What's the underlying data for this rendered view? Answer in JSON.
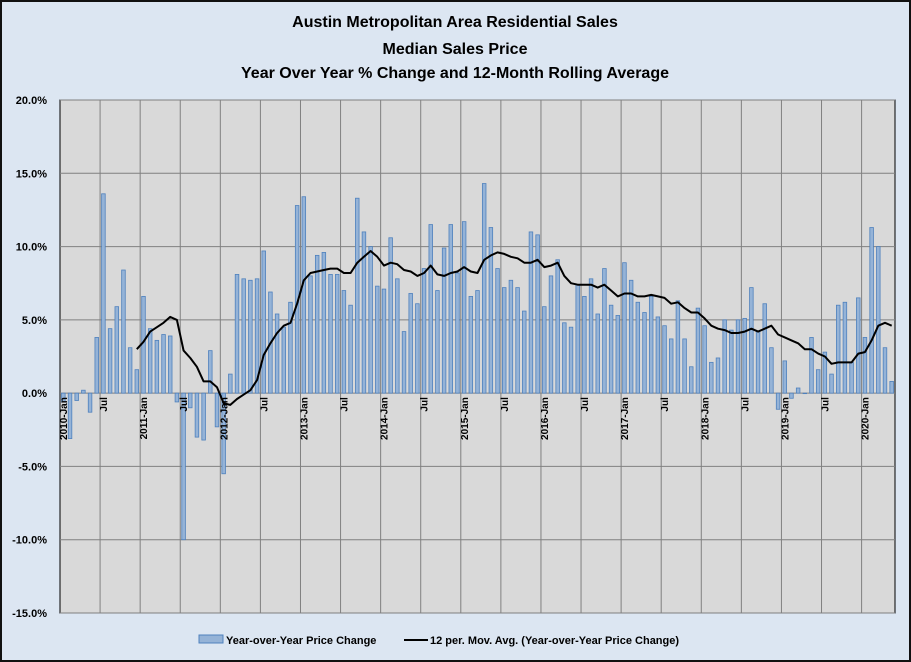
{
  "chart_data": {
    "type": "bar+line",
    "title": [
      "Austin Metropolitan Area Residential Sales",
      "Median Sales Price",
      "Year Over Year % Change and   12-Month Rolling Average"
    ],
    "ylim": [
      -15,
      20
    ],
    "yticks": [
      "-15.0%",
      "-10.0%",
      "-5.0%",
      "0.0%",
      "5.0%",
      "10.0%",
      "15.0%",
      "20.0%"
    ],
    "ytick_values": [
      -15,
      -10,
      -5,
      0,
      5,
      10,
      15,
      20
    ],
    "xtick_labels": [
      "2010-Jan",
      "Jul",
      "2011-Jan",
      "Jul",
      "2012-Jan",
      "Jul",
      "2013-Jan",
      "Jul",
      "2014-Jan",
      "Jul",
      "2015-Jan",
      "Jul",
      "2016-Jan",
      "Jul",
      "2017-Jan",
      "Jul",
      "2018-Jan",
      "Jul",
      "2019-Jan",
      "Jul",
      "2020-Jan"
    ],
    "x_start": "2010-Jan",
    "x_end": "2020-May",
    "grid": true,
    "legend_position": "bottom",
    "colors": {
      "bar": "#95b3d7",
      "bar_edge": "#4f81bd",
      "line": "#000000",
      "plot_bg": "#d9d9d9",
      "chart_bg": "#dce6f2",
      "grid": "#808080"
    },
    "series": [
      {
        "name": "Year-over-Year Price Change",
        "type": "bar",
        "values": [
          -0.6,
          -3.1,
          -0.5,
          0.2,
          -1.3,
          3.8,
          13.6,
          4.4,
          5.9,
          8.4,
          3.1,
          1.6,
          6.6,
          4.4,
          3.6,
          4.0,
          3.9,
          -0.6,
          -10.0,
          -1.0,
          -3.0,
          -3.2,
          2.9,
          -2.3,
          -5.5,
          1.3,
          8.1,
          7.8,
          7.7,
          7.8,
          9.7,
          6.9,
          5.4,
          4.5,
          6.2,
          12.8,
          13.4,
          8.0,
          9.4,
          9.6,
          8.1,
          8.1,
          7.0,
          6.0,
          13.3,
          11.0,
          10.0,
          7.3,
          7.1,
          10.6,
          7.8,
          4.2,
          6.8,
          6.1,
          8.5,
          11.5,
          7.0,
          9.9,
          11.5,
          8.2,
          11.7,
          6.6,
          7.0,
          14.3,
          11.3,
          8.5,
          7.2,
          7.7,
          7.2,
          5.6,
          11.0,
          10.8,
          5.9,
          8.0,
          9.1,
          4.8,
          4.5,
          7.4,
          6.6,
          7.8,
          5.4,
          8.5,
          6.0,
          5.3,
          8.9,
          7.7,
          6.2,
          5.5,
          6.6,
          5.2,
          4.6,
          3.7,
          6.3,
          3.7,
          1.8,
          5.8,
          4.6,
          2.1,
          2.4,
          5.0,
          4.3,
          5.0,
          5.1,
          7.2,
          4.2,
          6.1,
          3.1,
          -1.1,
          2.2,
          -0.35,
          0.35,
          0.0,
          3.8,
          1.6,
          2.8,
          1.3,
          6.0,
          6.2,
          2.1,
          6.5,
          3.8,
          11.3,
          10.0,
          3.1,
          0.8
        ]
      },
      {
        "name": "12 per. Mov. Avg. (Year-over-Year Price Change)",
        "type": "line",
        "values": [
          null,
          null,
          null,
          null,
          null,
          null,
          null,
          null,
          null,
          null,
          null,
          3.0,
          3.5,
          4.2,
          4.5,
          4.8,
          5.2,
          5.0,
          2.9,
          2.4,
          1.8,
          0.8,
          0.8,
          0.4,
          -0.7,
          -0.8,
          -0.4,
          -0.1,
          0.2,
          0.9,
          2.6,
          3.4,
          4.1,
          4.6,
          4.8,
          6.1,
          7.7,
          8.2,
          8.3,
          8.4,
          8.5,
          8.5,
          8.2,
          8.2,
          8.9,
          9.3,
          9.7,
          9.3,
          8.7,
          8.9,
          8.8,
          8.4,
          8.3,
          8.0,
          8.2,
          8.7,
          8.1,
          8.0,
          8.2,
          8.3,
          8.6,
          8.3,
          8.2,
          9.1,
          9.4,
          9.6,
          9.5,
          9.3,
          9.2,
          8.9,
          8.9,
          9.1,
          8.6,
          8.7,
          8.9,
          8.0,
          7.5,
          7.4,
          7.4,
          7.4,
          7.2,
          7.4,
          7.0,
          6.6,
          6.8,
          6.8,
          6.6,
          6.6,
          6.7,
          6.6,
          6.5,
          6.1,
          6.2,
          5.8,
          5.5,
          5.5,
          5.1,
          4.6,
          4.4,
          4.3,
          4.1,
          4.1,
          4.2,
          4.4,
          4.2,
          4.4,
          4.6,
          4.0,
          3.8,
          3.6,
          3.4,
          3.0,
          3.0,
          2.7,
          2.5,
          2.0,
          2.1,
          2.1,
          2.1,
          2.7,
          2.8,
          3.6,
          4.6,
          4.8,
          4.6
        ]
      }
    ]
  }
}
